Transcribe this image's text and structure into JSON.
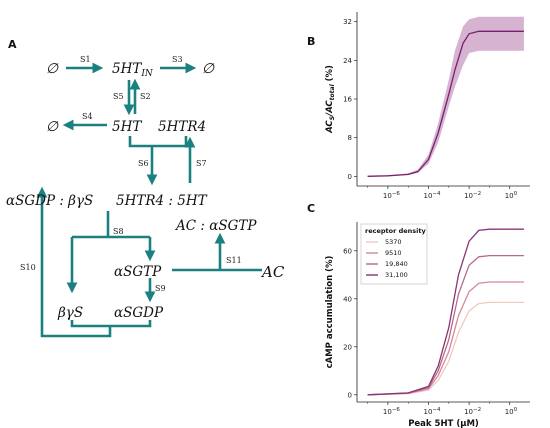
{
  "panels": {
    "a": "A",
    "b": "B",
    "c": "C"
  },
  "colors": {
    "arrow": "#1a8080",
    "curve_b": "#7a1e6e",
    "band_b": "#c89ac2",
    "series": [
      "#efc9c2",
      "#d5889a",
      "#b46a8e",
      "#8a3472"
    ]
  },
  "diagram": {
    "empty_set": "∅",
    "nodes": {
      "ht_in": "5HT",
      "ht_in_sub": "IN",
      "ht": "5HT",
      "htr4": "5HTR4",
      "complex": "5HTR4 : 5HT",
      "ags_gdp_bg": "αSGDP : βγS",
      "ac_ags_gtp": "AC : αSGTP",
      "ags_gtp": "αSGTP",
      "ags_gdp": "αSGDP",
      "bg": "βγS",
      "ac": "AC"
    },
    "steps": [
      "S1",
      "S3",
      "S5",
      "S2",
      "S4",
      "S6",
      "S7",
      "S8",
      "S9",
      "S10",
      "S11"
    ]
  },
  "chart_data": [
    {
      "type": "line",
      "panel": "B",
      "xlabel": "",
      "ylabel": "ACS/ACtotal (%)",
      "xscale": "log",
      "xlim": [
        3e-08,
        10
      ],
      "ylim": [
        -2,
        34
      ],
      "xticks": [
        "10−6",
        "10−4",
        "10−2",
        "100"
      ],
      "yticks": [
        0,
        8,
        16,
        24,
        32
      ],
      "series": [
        {
          "x": [
            1e-07,
            1e-06,
            1e-05,
            3e-05,
            0.0001,
            0.0003,
            0.001,
            0.002,
            0.005,
            0.01,
            0.03,
            0.1,
            1,
            5
          ],
          "y": [
            0,
            0.1,
            0.4,
            1,
            3.5,
            9,
            17,
            22,
            27.5,
            29.5,
            30,
            30,
            30,
            30
          ],
          "upper": [
            0,
            0.2,
            0.6,
            1.4,
            4.5,
            11,
            20,
            26,
            31,
            32.5,
            33,
            33,
            33,
            33
          ],
          "lower": [
            0,
            0.05,
            0.25,
            0.7,
            2.6,
            7,
            14.5,
            18.5,
            23,
            25.5,
            26,
            26,
            26,
            26
          ]
        }
      ]
    },
    {
      "type": "line",
      "panel": "C",
      "xlabel": "Peak 5HT (μM)",
      "ylabel": "cAMP accumulation (%)",
      "xscale": "log",
      "xlim": [
        3e-08,
        10
      ],
      "ylim": [
        -3,
        72
      ],
      "xticks": [
        "10−6",
        "10−4",
        "10−2",
        "100"
      ],
      "yticks": [
        0,
        20,
        40,
        60
      ],
      "legend_title": "receptor density",
      "legend_position": "top-left",
      "series": [
        {
          "name": "5370",
          "x": [
            1e-07,
            1e-05,
            0.0001,
            0.0003,
            0.001,
            0.003,
            0.01,
            0.03,
            0.1,
            1,
            5
          ],
          "y": [
            0,
            0.5,
            2,
            6,
            14,
            26,
            35,
            38,
            38.5,
            38.5,
            38.5
          ]
        },
        {
          "name": "9510",
          "x": [
            1e-07,
            1e-05,
            0.0001,
            0.0003,
            0.001,
            0.003,
            0.01,
            0.03,
            0.1,
            1,
            5
          ],
          "y": [
            0,
            0.6,
            2.5,
            8,
            18,
            33,
            43,
            46.5,
            47,
            47,
            47
          ]
        },
        {
          "name": "19,840",
          "x": [
            1e-07,
            1e-05,
            0.0001,
            0.0003,
            0.001,
            0.003,
            0.01,
            0.03,
            0.1,
            1,
            5
          ],
          "y": [
            0,
            0.7,
            3,
            10,
            23,
            42,
            54,
            57.5,
            58,
            58,
            58
          ]
        },
        {
          "name": "31,100",
          "x": [
            1e-07,
            1e-05,
            0.0001,
            0.0003,
            0.001,
            0.003,
            0.01,
            0.03,
            0.1,
            1,
            5
          ],
          "y": [
            0,
            0.8,
            3.5,
            12,
            28,
            50,
            64,
            68.5,
            69,
            69,
            69
          ]
        }
      ]
    }
  ]
}
